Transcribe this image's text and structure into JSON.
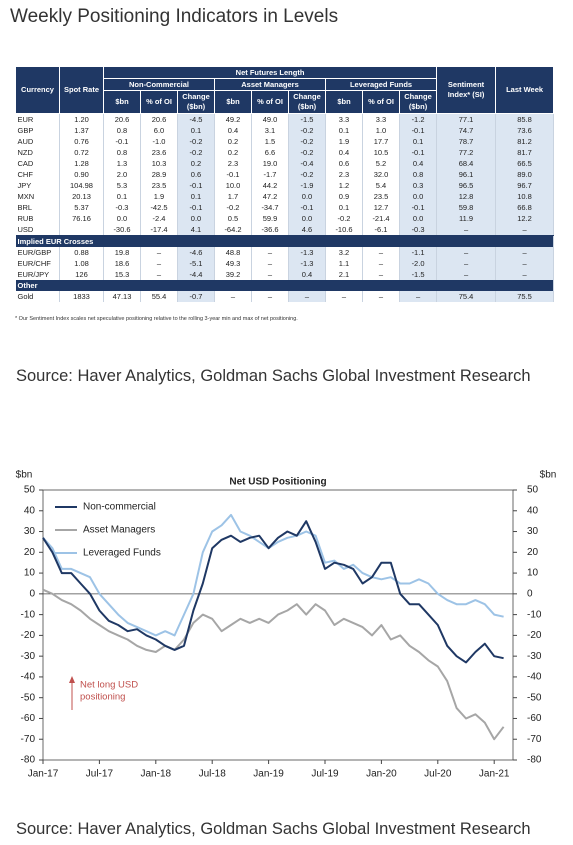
{
  "title": "Weekly Positioning Indicators in Levels",
  "table": {
    "currency_header": "Currency",
    "spot_header": "Spot Rate",
    "group_header": "Net Futures Length",
    "groups": [
      {
        "name": "Non-Commercial",
        "columns": [
          "$bn",
          "% of OI",
          "Change ($bn)"
        ]
      },
      {
        "name": "Asset Managers",
        "columns": [
          "$bn",
          "% of OI",
          "Change ($bn)"
        ]
      },
      {
        "name": "Leveraged Funds",
        "columns": [
          "$bn",
          "% of OI",
          "Change ($bn)"
        ]
      }
    ],
    "si_header": "Sentiment Index* (SI)",
    "last_header": "Last Week",
    "body": [
      {
        "cells": [
          "EUR",
          "1.20",
          "20.6",
          "20.6",
          "-4.5",
          "49.2",
          "49.0",
          "-1.5",
          "3.3",
          "3.3",
          "-1.2",
          "77.1",
          "85.8"
        ]
      },
      {
        "cells": [
          "GBP",
          "1.37",
          "0.8",
          "6.0",
          "0.1",
          "0.4",
          "3.1",
          "-0.2",
          "0.1",
          "1.0",
          "-0.1",
          "74.7",
          "73.6"
        ]
      },
      {
        "cells": [
          "AUD",
          "0.76",
          "-0.1",
          "-1.0",
          "-0.2",
          "0.2",
          "1.5",
          "-0.2",
          "1.9",
          "17.7",
          "0.1",
          "78.7",
          "81.2"
        ]
      },
      {
        "cells": [
          "NZD",
          "0.72",
          "0.8",
          "23.6",
          "-0.2",
          "0.2",
          "6.6",
          "-0.2",
          "0.4",
          "10.5",
          "-0.1",
          "77.2",
          "81.7"
        ]
      },
      {
        "cells": [
          "CAD",
          "1.28",
          "1.3",
          "10.3",
          "0.2",
          "2.3",
          "19.0",
          "-0.4",
          "0.6",
          "5.2",
          "0.4",
          "68.4",
          "66.5"
        ]
      },
      {
        "cells": [
          "CHF",
          "0.90",
          "2.0",
          "28.9",
          "0.6",
          "-0.1",
          "-1.7",
          "-0.2",
          "2.3",
          "32.0",
          "0.8",
          "96.1",
          "89.0"
        ]
      },
      {
        "cells": [
          "JPY",
          "104.98",
          "5.3",
          "23.5",
          "-0.1",
          "10.0",
          "44.2",
          "-1.9",
          "1.2",
          "5.4",
          "0.3",
          "96.5",
          "96.7"
        ]
      },
      {
        "cells": [
          "MXN",
          "20.13",
          "0.1",
          "1.9",
          "0.1",
          "1.7",
          "47.2",
          "0.0",
          "0.9",
          "23.5",
          "0.0",
          "12.8",
          "10.8"
        ]
      },
      {
        "cells": [
          "BRL",
          "5.37",
          "-0.3",
          "-42.5",
          "-0.1",
          "-0.2",
          "-34.7",
          "-0.1",
          "0.1",
          "12.7",
          "-0.1",
          "59.8",
          "66.8"
        ]
      },
      {
        "cells": [
          "RUB",
          "76.16",
          "0.0",
          "-2.4",
          "0.0",
          "0.5",
          "59.9",
          "0.0",
          "-0.2",
          "-21.4",
          "0.0",
          "11.9",
          "12.2"
        ]
      },
      {
        "cells": [
          "USD",
          null,
          "-30.6",
          "-17.4",
          "4.1",
          "-64.2",
          "-36.6",
          "4.6",
          "-10.6",
          "-6.1",
          "-0.3",
          "–",
          "–"
        ]
      },
      {
        "section": "Implied EUR Crosses"
      },
      {
        "cells": [
          "EUR/GBP",
          "0.88",
          "19.8",
          "–",
          "-4.6",
          "48.8",
          "–",
          "-1.3",
          "3.2",
          "–",
          "-1.1",
          "–",
          "–"
        ]
      },
      {
        "cells": [
          "EUR/CHF",
          "1.08",
          "18.6",
          "–",
          "-5.1",
          "49.3",
          "–",
          "-1.3",
          "1.1",
          "–",
          "-2.0",
          "–",
          "–"
        ]
      },
      {
        "cells": [
          "EUR/JPY",
          "126",
          "15.3",
          "–",
          "-4.4",
          "39.2",
          "–",
          "0.4",
          "2.1",
          "–",
          "-1.5",
          "–",
          "–"
        ]
      },
      {
        "section": "Other"
      },
      {
        "cells": [
          "Gold",
          "1833",
          "47.13",
          "55.4",
          "-0.7",
          "–",
          "–",
          "–",
          "–",
          "–",
          "–",
          "75.4",
          "75.5"
        ]
      }
    ]
  },
  "footnote": "* Our Sentiment Index scales net speculative positioning relative to the rolling 3-year min and max of net positioning.",
  "sources": [
    "Source: Haver Analytics, Goldman Sachs Global Investment Research",
    "Source: Haver Analytics, Goldman Sachs Global Investment Research"
  ],
  "chart_data": {
    "type": "line",
    "title": "Net USD Positioning",
    "ylabel": "$bn",
    "y2label": "$bn",
    "x": [
      "2017-01",
      "2017-02",
      "2017-03",
      "2017-04",
      "2017-05",
      "2017-06",
      "2017-07",
      "2017-08",
      "2017-09",
      "2017-10",
      "2017-11",
      "2017-12",
      "2018-01",
      "2018-02",
      "2018-03",
      "2018-04",
      "2018-05",
      "2018-06",
      "2018-07",
      "2018-08",
      "2018-09",
      "2018-10",
      "2018-11",
      "2018-12",
      "2019-01",
      "2019-02",
      "2019-03",
      "2019-04",
      "2019-05",
      "2019-06",
      "2019-07",
      "2019-08",
      "2019-09",
      "2019-10",
      "2019-11",
      "2019-12",
      "2020-01",
      "2020-02",
      "2020-03",
      "2020-04",
      "2020-05",
      "2020-06",
      "2020-07",
      "2020-08",
      "2020-09",
      "2020-10",
      "2020-11",
      "2020-12",
      "2021-01",
      "2021-02"
    ],
    "series": [
      {
        "name": "Non-commercial",
        "color": "#1f3864",
        "width": 2,
        "values": [
          27,
          20,
          10,
          10,
          5,
          0,
          -8,
          -13,
          -15,
          -18,
          -17,
          -20,
          -22,
          -25,
          -27,
          -25,
          -8,
          5,
          22,
          26,
          28,
          25,
          27,
          28,
          22,
          27,
          30,
          28,
          35,
          25,
          12,
          15,
          14,
          12,
          5,
          8,
          15,
          15,
          0,
          -5,
          -5,
          -10,
          -15,
          -25,
          -30,
          -33,
          -28,
          -24,
          -30,
          -31
        ]
      },
      {
        "name": "Asset Managers",
        "color": "#a6a6a6",
        "width": 2,
        "values": [
          2,
          0,
          -3,
          -5,
          -8,
          -12,
          -15,
          -18,
          -20,
          -22,
          -25,
          -27,
          -28,
          -25,
          -27,
          -22,
          -14,
          -10,
          -12,
          -18,
          -15,
          -12,
          -14,
          -12,
          -14,
          -10,
          -8,
          -5,
          -10,
          -5,
          -8,
          -15,
          -12,
          -14,
          -16,
          -20,
          -15,
          -22,
          -20,
          -25,
          -28,
          -32,
          -35,
          -42,
          -55,
          -60,
          -58,
          -62,
          -70,
          -64
        ]
      },
      {
        "name": "Leveraged Funds",
        "color": "#9dc3e6",
        "width": 2,
        "values": [
          27,
          22,
          12,
          12,
          10,
          8,
          0,
          -5,
          -10,
          -14,
          -16,
          -18,
          -20,
          -18,
          -20,
          -10,
          0,
          20,
          30,
          33,
          38,
          30,
          28,
          25,
          22,
          25,
          27,
          28,
          30,
          28,
          15,
          16,
          12,
          14,
          10,
          8,
          7,
          8,
          5,
          5,
          7,
          5,
          0,
          -3,
          -5,
          -5,
          -3,
          -5,
          -10,
          -11
        ]
      }
    ],
    "xlim": [
      "2017-01",
      "2021-03"
    ],
    "xticks": [
      {
        "value": "2017-01",
        "label": "Jan-17"
      },
      {
        "value": "2017-07",
        "label": "Jul-17"
      },
      {
        "value": "2018-01",
        "label": "Jan-18"
      },
      {
        "value": "2018-07",
        "label": "Jul-18"
      },
      {
        "value": "2019-01",
        "label": "Jan-19"
      },
      {
        "value": "2019-07",
        "label": "Jul-19"
      },
      {
        "value": "2020-01",
        "label": "Jan-20"
      },
      {
        "value": "2020-07",
        "label": "Jul-20"
      },
      {
        "value": "2021-01",
        "label": "Jan-21"
      }
    ],
    "ylim": [
      -80,
      50
    ],
    "yticks": [
      -80,
      -70,
      -60,
      -50,
      -40,
      -30,
      -20,
      -10,
      0,
      10,
      20,
      30,
      40,
      50
    ],
    "y2lim": [
      -80,
      50
    ],
    "y2ticks": [
      -80,
      -70,
      -60,
      -50,
      -40,
      -30,
      -20,
      -10,
      0,
      10,
      20,
      30,
      40,
      50
    ],
    "legend": "upper left",
    "annotation": {
      "lines": [
        "Net long USD",
        "positioning"
      ],
      "color": "#c0504d"
    }
  }
}
